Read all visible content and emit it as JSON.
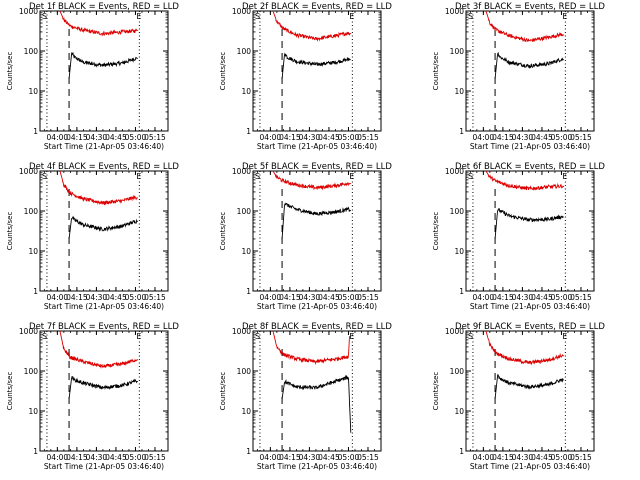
{
  "figure": {
    "xlabel": "Start Time (21-Apr-05 03:46:40)",
    "ylabel": "Counts/sec",
    "start_marker": "S",
    "end_marker": "E",
    "events_color": "#000000",
    "lld_color": "#dd0000"
  },
  "chart_data": [
    {
      "type": "line",
      "title": "Det 1f BLACK = Events, RED = LLD",
      "xlabel": "Start Time (21-Apr-05 03:46:40)",
      "ylabel": "Counts/sec",
      "yscale": "log",
      "ylim": [
        1,
        1000
      ],
      "xtick_labels": [
        "04:00",
        "04:15",
        "04:30",
        "04:45",
        "05:00",
        "05:15"
      ],
      "ytick_labels": [
        "1",
        "10",
        "100",
        "1000"
      ],
      "markers": {
        "S": "03:52",
        "E": "05:03"
      },
      "dashed_line_time": "04:09",
      "series": [
        {
          "name": "Events",
          "points": [
            [
              "04:09",
              20
            ],
            [
              "04:11",
              90
            ],
            [
              "04:13",
              70
            ],
            [
              "04:20",
              52
            ],
            [
              "04:35",
              44
            ],
            [
              "04:50",
              50
            ],
            [
              "05:00",
              65
            ],
            [
              "05:02",
              65
            ]
          ]
        },
        {
          "name": "LLD",
          "points": [
            [
              "04:02",
              1000
            ],
            [
              "04:05",
              600
            ],
            [
              "04:10",
              420
            ],
            [
              "04:20",
              330
            ],
            [
              "04:35",
              270
            ],
            [
              "04:50",
              300
            ],
            [
              "05:00",
              320
            ],
            [
              "05:02",
              330
            ]
          ]
        }
      ]
    },
    {
      "type": "line",
      "title": "Det 2f BLACK = Events, RED = LLD",
      "xlabel": "Start Time (21-Apr-05 03:46:40)",
      "ylabel": "Counts/sec",
      "yscale": "log",
      "ylim": [
        1,
        1000
      ],
      "xtick_labels": [
        "04:00",
        "04:15",
        "04:30",
        "04:45",
        "05:00",
        "05:15"
      ],
      "ytick_labels": [
        "1",
        "10",
        "100",
        "1000"
      ],
      "markers": {
        "S": "03:52",
        "E": "05:03"
      },
      "dashed_line_time": "04:09",
      "series": [
        {
          "name": "Events",
          "points": [
            [
              "04:09",
              20
            ],
            [
              "04:11",
              90
            ],
            [
              "04:13",
              70
            ],
            [
              "04:20",
              55
            ],
            [
              "04:35",
              46
            ],
            [
              "04:50",
              52
            ],
            [
              "05:00",
              62
            ],
            [
              "05:02",
              60
            ]
          ]
        },
        {
          "name": "LLD",
          "points": [
            [
              "04:02",
              1000
            ],
            [
              "04:05",
              550
            ],
            [
              "04:10",
              360
            ],
            [
              "04:20",
              250
            ],
            [
              "04:35",
              200
            ],
            [
              "04:50",
              240
            ],
            [
              "05:00",
              280
            ],
            [
              "05:02",
              270
            ]
          ]
        }
      ]
    },
    {
      "type": "line",
      "title": "Det 3f BLACK = Events, RED = LLD",
      "xlabel": "Start Time (21-Apr-05 03:46:40)",
      "ylabel": "Counts/sec",
      "yscale": "log",
      "ylim": [
        1,
        1000
      ],
      "xtick_labels": [
        "04:00",
        "04:15",
        "04:30",
        "04:45",
        "05:00",
        "05:15"
      ],
      "ytick_labels": [
        "1",
        "10",
        "100",
        "1000"
      ],
      "markers": {
        "S": "03:52",
        "E": "05:03"
      },
      "dashed_line_time": "04:09",
      "series": [
        {
          "name": "Events",
          "points": [
            [
              "04:09",
              20
            ],
            [
              "04:11",
              90
            ],
            [
              "04:13",
              70
            ],
            [
              "04:20",
              52
            ],
            [
              "04:35",
              42
            ],
            [
              "04:50",
              48
            ],
            [
              "05:00",
              62
            ],
            [
              "05:02",
              60
            ]
          ]
        },
        {
          "name": "LLD",
          "points": [
            [
              "04:02",
              1000
            ],
            [
              "04:05",
              500
            ],
            [
              "04:10",
              330
            ],
            [
              "04:20",
              240
            ],
            [
              "04:35",
              180
            ],
            [
              "04:50",
              220
            ],
            [
              "05:00",
              260
            ],
            [
              "05:02",
              250
            ]
          ]
        }
      ]
    },
    {
      "type": "line",
      "title": "Det 4f BLACK = Events, RED = LLD",
      "xlabel": "Start Time (21-Apr-05 03:46:40)",
      "ylabel": "Counts/sec",
      "yscale": "log",
      "ylim": [
        1,
        1000
      ],
      "xtick_labels": [
        "04:00",
        "04:15",
        "04:30",
        "04:45",
        "05:00",
        "05:15"
      ],
      "ytick_labels": [
        "1",
        "10",
        "100",
        "1000"
      ],
      "markers": {
        "S": "03:52",
        "E": "05:03"
      },
      "dashed_line_time": "04:09",
      "series": [
        {
          "name": "Events",
          "points": [
            [
              "04:09",
              20
            ],
            [
              "04:11",
              70
            ],
            [
              "04:13",
              60
            ],
            [
              "04:20",
              45
            ],
            [
              "04:35",
              35
            ],
            [
              "04:50",
              42
            ],
            [
              "05:00",
              55
            ],
            [
              "05:02",
              55
            ]
          ]
        },
        {
          "name": "LLD",
          "points": [
            [
              "04:02",
              1000
            ],
            [
              "04:05",
              450
            ],
            [
              "04:10",
              280
            ],
            [
              "04:20",
              200
            ],
            [
              "04:35",
              160
            ],
            [
              "04:50",
              180
            ],
            [
              "05:00",
              220
            ],
            [
              "05:02",
              210
            ]
          ]
        }
      ]
    },
    {
      "type": "line",
      "title": "Det 5f BLACK = Events, RED = LLD",
      "xlabel": "Start Time (21-Apr-05 03:46:40)",
      "ylabel": "Counts/sec",
      "yscale": "log",
      "ylim": [
        1,
        1000
      ],
      "xtick_labels": [
        "04:00",
        "04:15",
        "04:30",
        "04:45",
        "05:00",
        "05:15"
      ],
      "ytick_labels": [
        "1",
        "10",
        "100",
        "1000"
      ],
      "markers": {
        "S": "03:52",
        "E": "05:03"
      },
      "dashed_line_time": "04:09",
      "series": [
        {
          "name": "Events",
          "points": [
            [
              "04:09",
              20
            ],
            [
              "04:11",
              160
            ],
            [
              "04:13",
              140
            ],
            [
              "04:20",
              110
            ],
            [
              "04:35",
              85
            ],
            [
              "04:50",
              95
            ],
            [
              "05:00",
              110
            ],
            [
              "05:02",
              100
            ]
          ]
        },
        {
          "name": "LLD",
          "points": [
            [
              "04:02",
              1000
            ],
            [
              "04:05",
              700
            ],
            [
              "04:10",
              560
            ],
            [
              "04:20",
              450
            ],
            [
              "04:35",
              380
            ],
            [
              "04:50",
              430
            ],
            [
              "05:00",
              500
            ],
            [
              "05:02",
              480
            ]
          ]
        }
      ]
    },
    {
      "type": "line",
      "title": "Det 6f BLACK = Events, RED = LLD",
      "xlabel": "Start Time (21-Apr-05 03:46:40)",
      "ylabel": "Counts/sec",
      "yscale": "log",
      "ylim": [
        1,
        1000
      ],
      "xtick_labels": [
        "04:00",
        "04:15",
        "04:30",
        "04:45",
        "05:00",
        "05:15"
      ],
      "ytick_labels": [
        "1",
        "10",
        "100",
        "1000"
      ],
      "markers": {
        "S": "03:52",
        "E": "05:03"
      },
      "dashed_line_time": "04:09",
      "series": [
        {
          "name": "Events",
          "points": [
            [
              "04:09",
              20
            ],
            [
              "04:11",
              110
            ],
            [
              "04:13",
              100
            ],
            [
              "04:20",
              75
            ],
            [
              "04:35",
              60
            ],
            [
              "04:50",
              62
            ],
            [
              "05:00",
              72
            ],
            [
              "05:02",
              70
            ]
          ]
        },
        {
          "name": "LLD",
          "points": [
            [
              "04:02",
              1000
            ],
            [
              "04:05",
              700
            ],
            [
              "04:10",
              550
            ],
            [
              "04:20",
              430
            ],
            [
              "04:35",
              360
            ],
            [
              "04:50",
              400
            ],
            [
              "05:00",
              420
            ],
            [
              "05:02",
              410
            ]
          ]
        }
      ]
    },
    {
      "type": "line",
      "title": "Det 7f BLACK = Events, RED = LLD",
      "xlabel": "Start Time (21-Apr-05 03:46:40)",
      "ylabel": "Counts/sec",
      "yscale": "log",
      "ylim": [
        1,
        1000
      ],
      "xtick_labels": [
        "04:00",
        "04:15",
        "04:30",
        "04:45",
        "05:00",
        "05:15"
      ],
      "ytick_labels": [
        "1",
        "10",
        "100",
        "1000"
      ],
      "markers": {
        "S": "03:52",
        "E": "05:03"
      },
      "dashed_line_time": "04:09",
      "series": [
        {
          "name": "Events",
          "points": [
            [
              "04:09",
              20
            ],
            [
              "04:11",
              70
            ],
            [
              "04:13",
              60
            ],
            [
              "04:20",
              50
            ],
            [
              "04:35",
              38
            ],
            [
              "04:50",
              44
            ],
            [
              "05:00",
              55
            ],
            [
              "05:02",
              55
            ]
          ]
        },
        {
          "name": "LLD",
          "points": [
            [
              "04:02",
              1000
            ],
            [
              "04:05",
              350
            ],
            [
              "04:10",
              220
            ],
            [
              "04:20",
              170
            ],
            [
              "04:35",
              130
            ],
            [
              "04:50",
              150
            ],
            [
              "05:00",
              190
            ],
            [
              "05:02",
              190
            ]
          ]
        }
      ]
    },
    {
      "type": "line",
      "title": "Det 8f BLACK = Events, RED = LLD",
      "xlabel": "Start Time (21-Apr-05 03:46:40)",
      "ylabel": "Counts/sec",
      "yscale": "log",
      "ylim": [
        1,
        1000
      ],
      "xtick_labels": [
        "04:00",
        "04:15",
        "04:30",
        "04:45",
        "05:00",
        "05:15"
      ],
      "ytick_labels": [
        "1",
        "10",
        "100",
        "1000"
      ],
      "markers": {
        "S": "03:52",
        "E": "05:03"
      },
      "dashed_line_time": "04:09",
      "series": [
        {
          "name": "Events",
          "points": [
            [
              "04:09",
              20
            ],
            [
              "04:11",
              55
            ],
            [
              "04:13",
              50
            ],
            [
              "04:20",
              40
            ],
            [
              "04:35",
              38
            ],
            [
              "04:50",
              55
            ],
            [
              "05:00",
              70
            ],
            [
              "05:02",
              2
            ]
          ]
        },
        {
          "name": "LLD",
          "points": [
            [
              "04:02",
              1000
            ],
            [
              "04:05",
              400
            ],
            [
              "04:10",
              260
            ],
            [
              "04:20",
              200
            ],
            [
              "04:35",
              170
            ],
            [
              "04:50",
              200
            ],
            [
              "05:00",
              230
            ],
            [
              "05:01",
              1000
            ]
          ]
        }
      ]
    },
    {
      "type": "line",
      "title": "Det 9f BLACK = Events, RED = LLD",
      "xlabel": "Start Time (21-Apr-05 03:46:40)",
      "ylabel": "Counts/sec",
      "yscale": "log",
      "ylim": [
        1,
        1000
      ],
      "xtick_labels": [
        "04:00",
        "04:15",
        "04:30",
        "04:45",
        "05:00",
        "05:15"
      ],
      "ytick_labels": [
        "1",
        "10",
        "100",
        "1000"
      ],
      "markers": {
        "S": "03:52",
        "E": "05:03"
      },
      "dashed_line_time": "04:09",
      "series": [
        {
          "name": "Events",
          "points": [
            [
              "04:09",
              20
            ],
            [
              "04:11",
              80
            ],
            [
              "04:13",
              65
            ],
            [
              "04:20",
              50
            ],
            [
              "04:35",
              40
            ],
            [
              "04:50",
              45
            ],
            [
              "05:00",
              60
            ],
            [
              "05:02",
              60
            ]
          ]
        },
        {
          "name": "LLD",
          "points": [
            [
              "04:02",
              1000
            ],
            [
              "04:05",
              450
            ],
            [
              "04:10",
              280
            ],
            [
              "04:20",
              200
            ],
            [
              "04:35",
              160
            ],
            [
              "04:50",
              190
            ],
            [
              "05:00",
              240
            ],
            [
              "05:02",
              240
            ]
          ]
        }
      ]
    }
  ]
}
